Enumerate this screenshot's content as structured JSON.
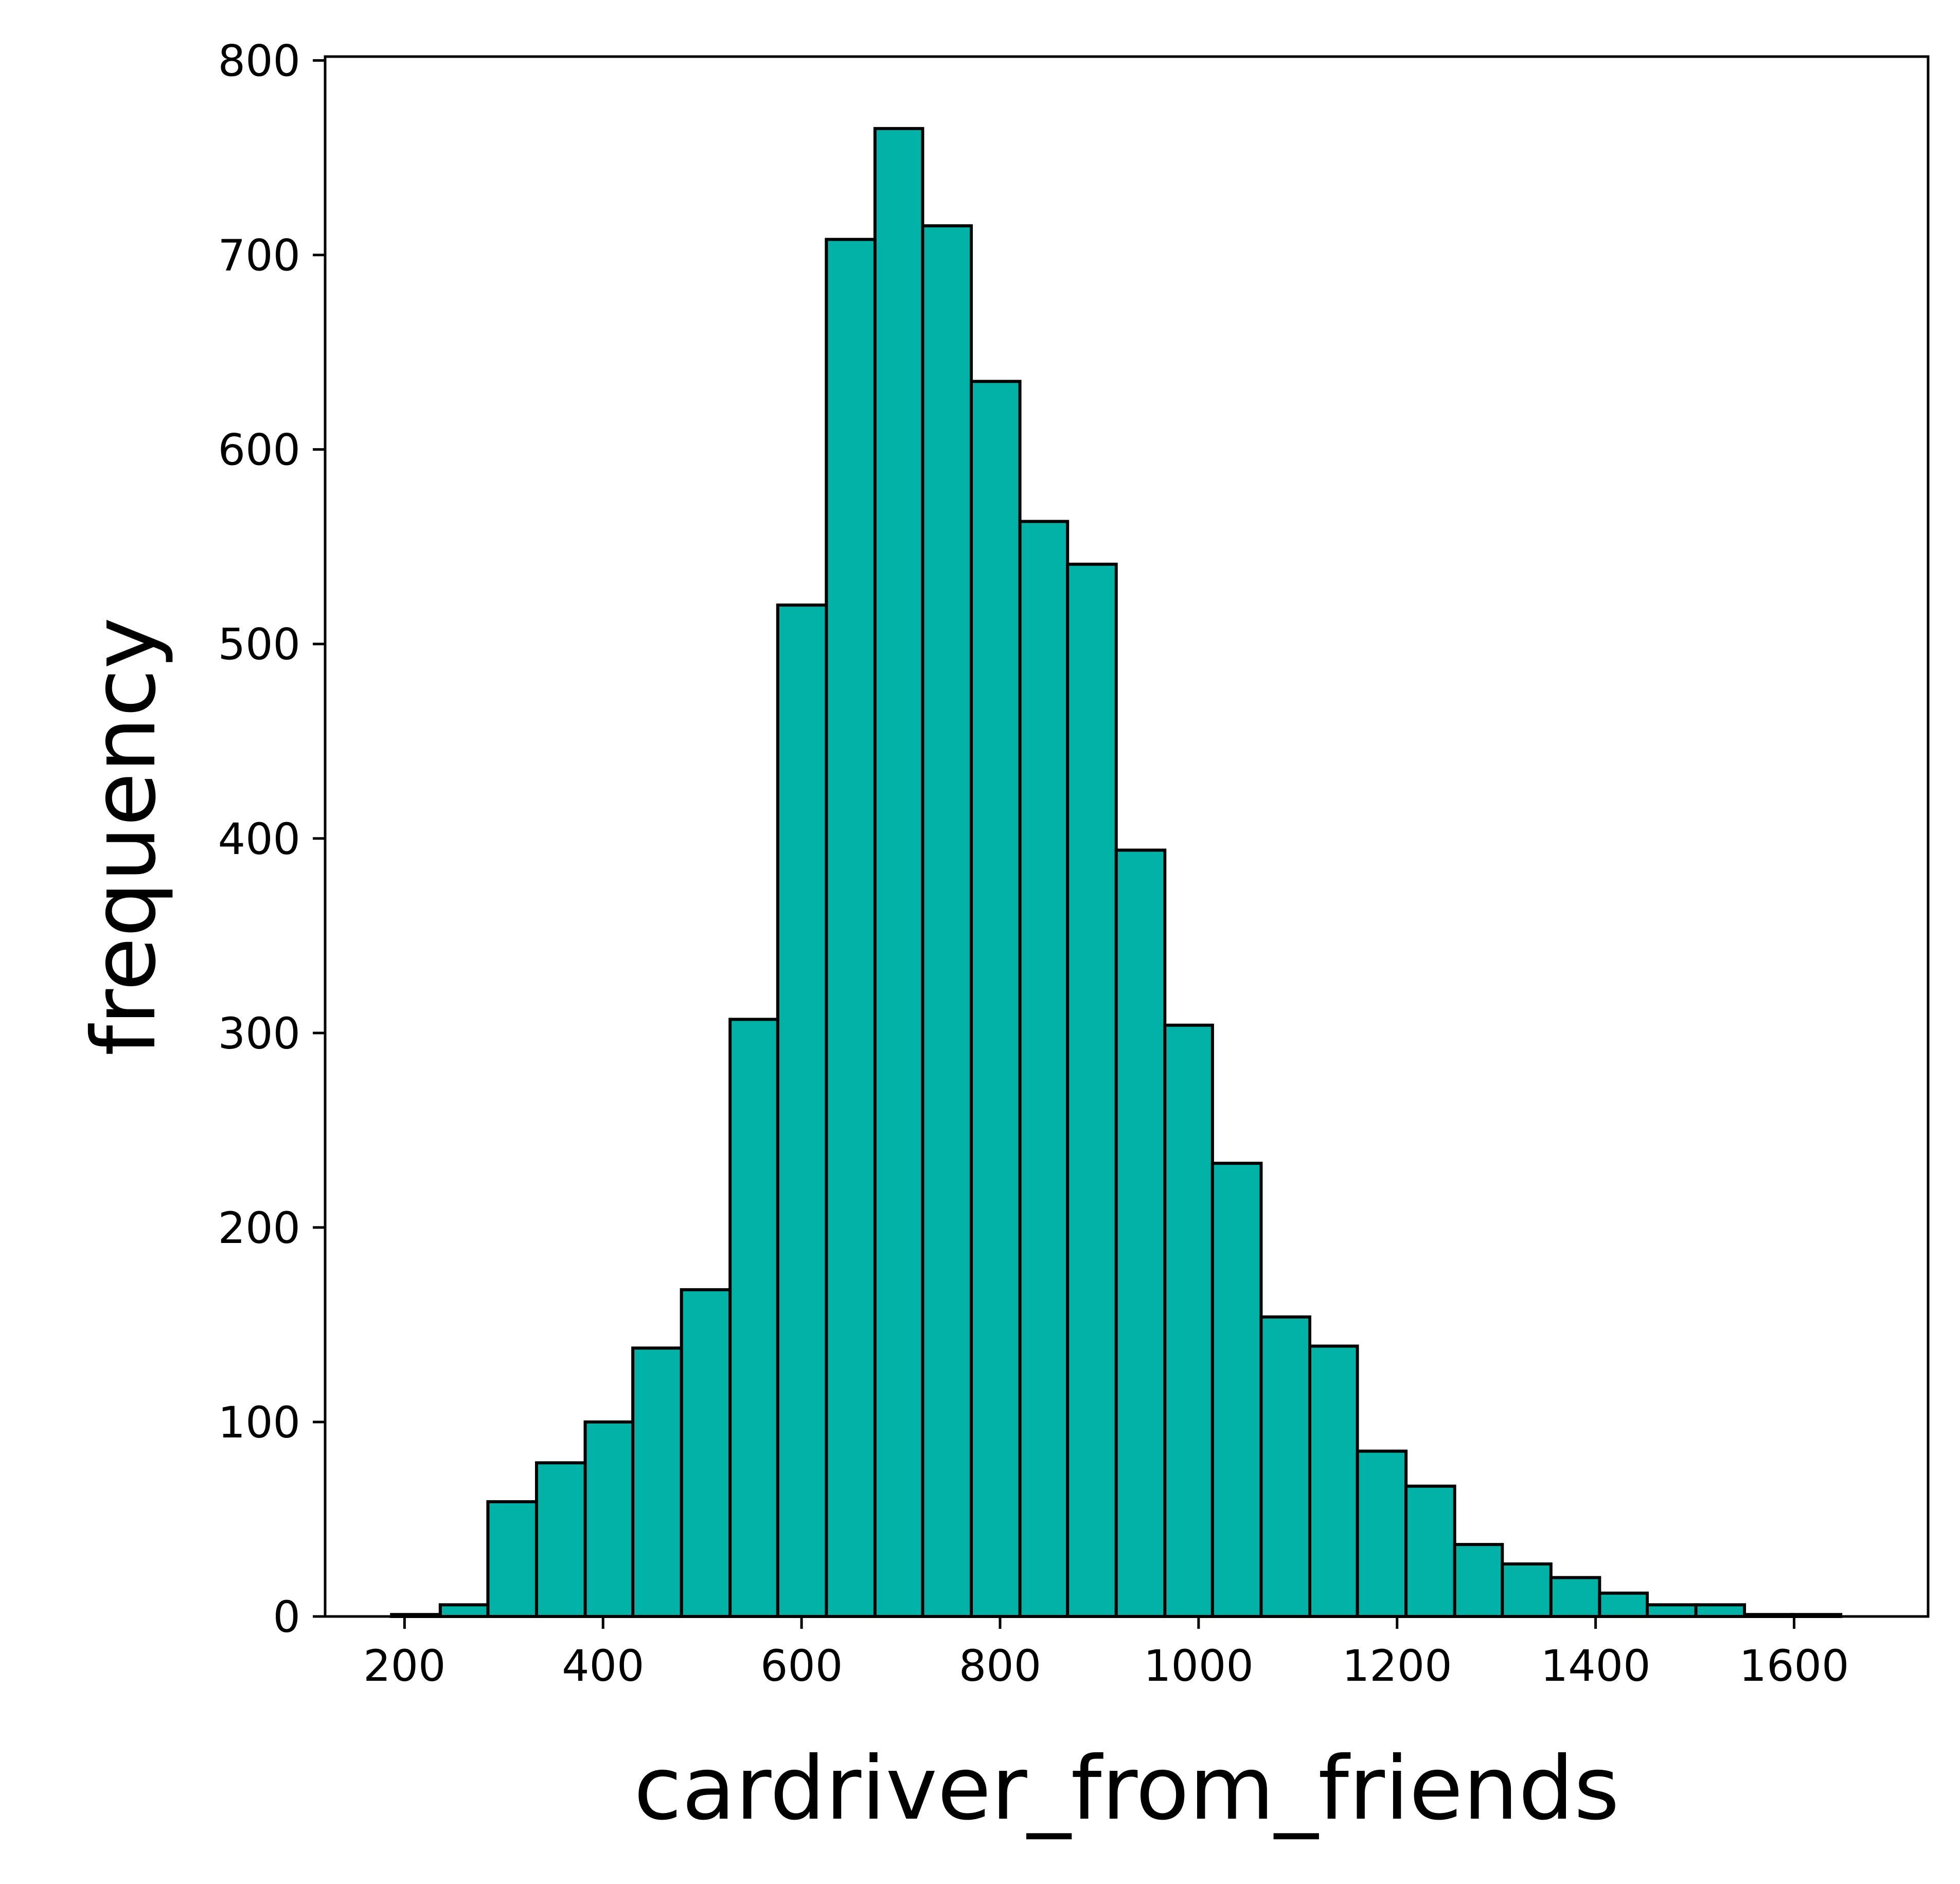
{
  "chart_data": {
    "type": "bar",
    "subtype": "histogram",
    "xlabel": "cardriver_from_friends",
    "ylabel": "frequency",
    "xlim": [
      120,
      1735
    ],
    "ylim": [
      0,
      802
    ],
    "xticks": [
      200,
      400,
      600,
      800,
      1000,
      1200,
      1400,
      1600
    ],
    "yticks": [
      0,
      100,
      200,
      300,
      400,
      500,
      600,
      700,
      800
    ],
    "bin_edges": [
      187,
      236,
      284,
      333,
      382,
      430,
      479,
      528,
      576,
      625,
      674,
      722,
      771,
      820,
      868,
      917,
      966,
      1014,
      1063,
      1112,
      1160,
      1209,
      1258,
      1306,
      1355,
      1404,
      1452,
      1501,
      1550,
      1598,
      1647
    ],
    "values": [
      1,
      6,
      59,
      79,
      100,
      138,
      168,
      307,
      520,
      708,
      765,
      715,
      635,
      563,
      541,
      394,
      304,
      233,
      154,
      139,
      85,
      67,
      37,
      27,
      20,
      12,
      6,
      6,
      1,
      1
    ],
    "bar_color": "#02b2a6",
    "edge_color": "#000000",
    "grid": false
  }
}
